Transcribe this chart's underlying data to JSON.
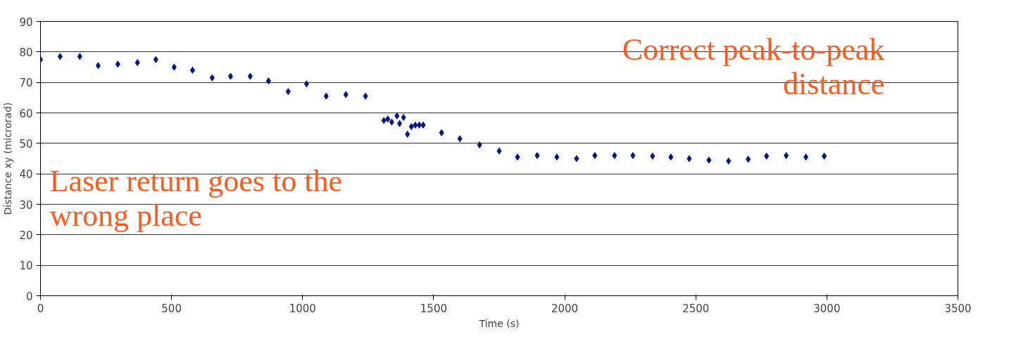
{
  "chart_data": {
    "type": "scatter",
    "xlabel": "Time (s)",
    "ylabel": "Distance xy (microrad)",
    "x": [
      0,
      75,
      150,
      220,
      295,
      370,
      440,
      510,
      580,
      655,
      725,
      800,
      870,
      945,
      1015,
      1090,
      1165,
      1240,
      1310,
      1325,
      1340,
      1360,
      1370,
      1385,
      1400,
      1415,
      1430,
      1445,
      1460,
      1530,
      1600,
      1675,
      1750,
      1820,
      1895,
      1970,
      2045,
      2115,
      2190,
      2260,
      2335,
      2405,
      2475,
      2550,
      2625,
      2700,
      2770,
      2845,
      2920,
      2990
    ],
    "series": [
      {
        "color": "#00128c",
        "values": [
          77.5,
          78.5,
          78.5,
          75.5,
          76,
          76.5,
          77.5,
          75,
          74,
          71.5,
          72,
          72,
          70.5,
          67,
          69.5,
          65.5,
          66,
          65.5,
          57.5,
          58,
          57,
          59,
          56.5,
          58.5,
          53,
          55.5,
          56,
          56,
          56,
          53.5,
          51.5,
          49.5,
          47.5,
          45.5,
          46,
          45.5,
          45,
          46,
          46,
          46,
          45.8,
          45.5,
          45,
          44.5,
          44.2,
          44.8,
          45.8,
          46,
          45.5,
          45.8
        ]
      }
    ],
    "xlim": [
      0,
      3500
    ],
    "xticks": [
      0,
      500,
      1000,
      1500,
      2000,
      2500,
      3000,
      3500
    ],
    "ylim": [
      0,
      90
    ],
    "yticks": [
      0,
      10,
      20,
      30,
      40,
      50,
      60,
      70,
      80,
      90
    ],
    "grid": "y",
    "marker": "diamond",
    "annotations": [
      "Correct peak-to-peak\ndistance",
      "Laser return goes to the\nwrong place"
    ]
  }
}
